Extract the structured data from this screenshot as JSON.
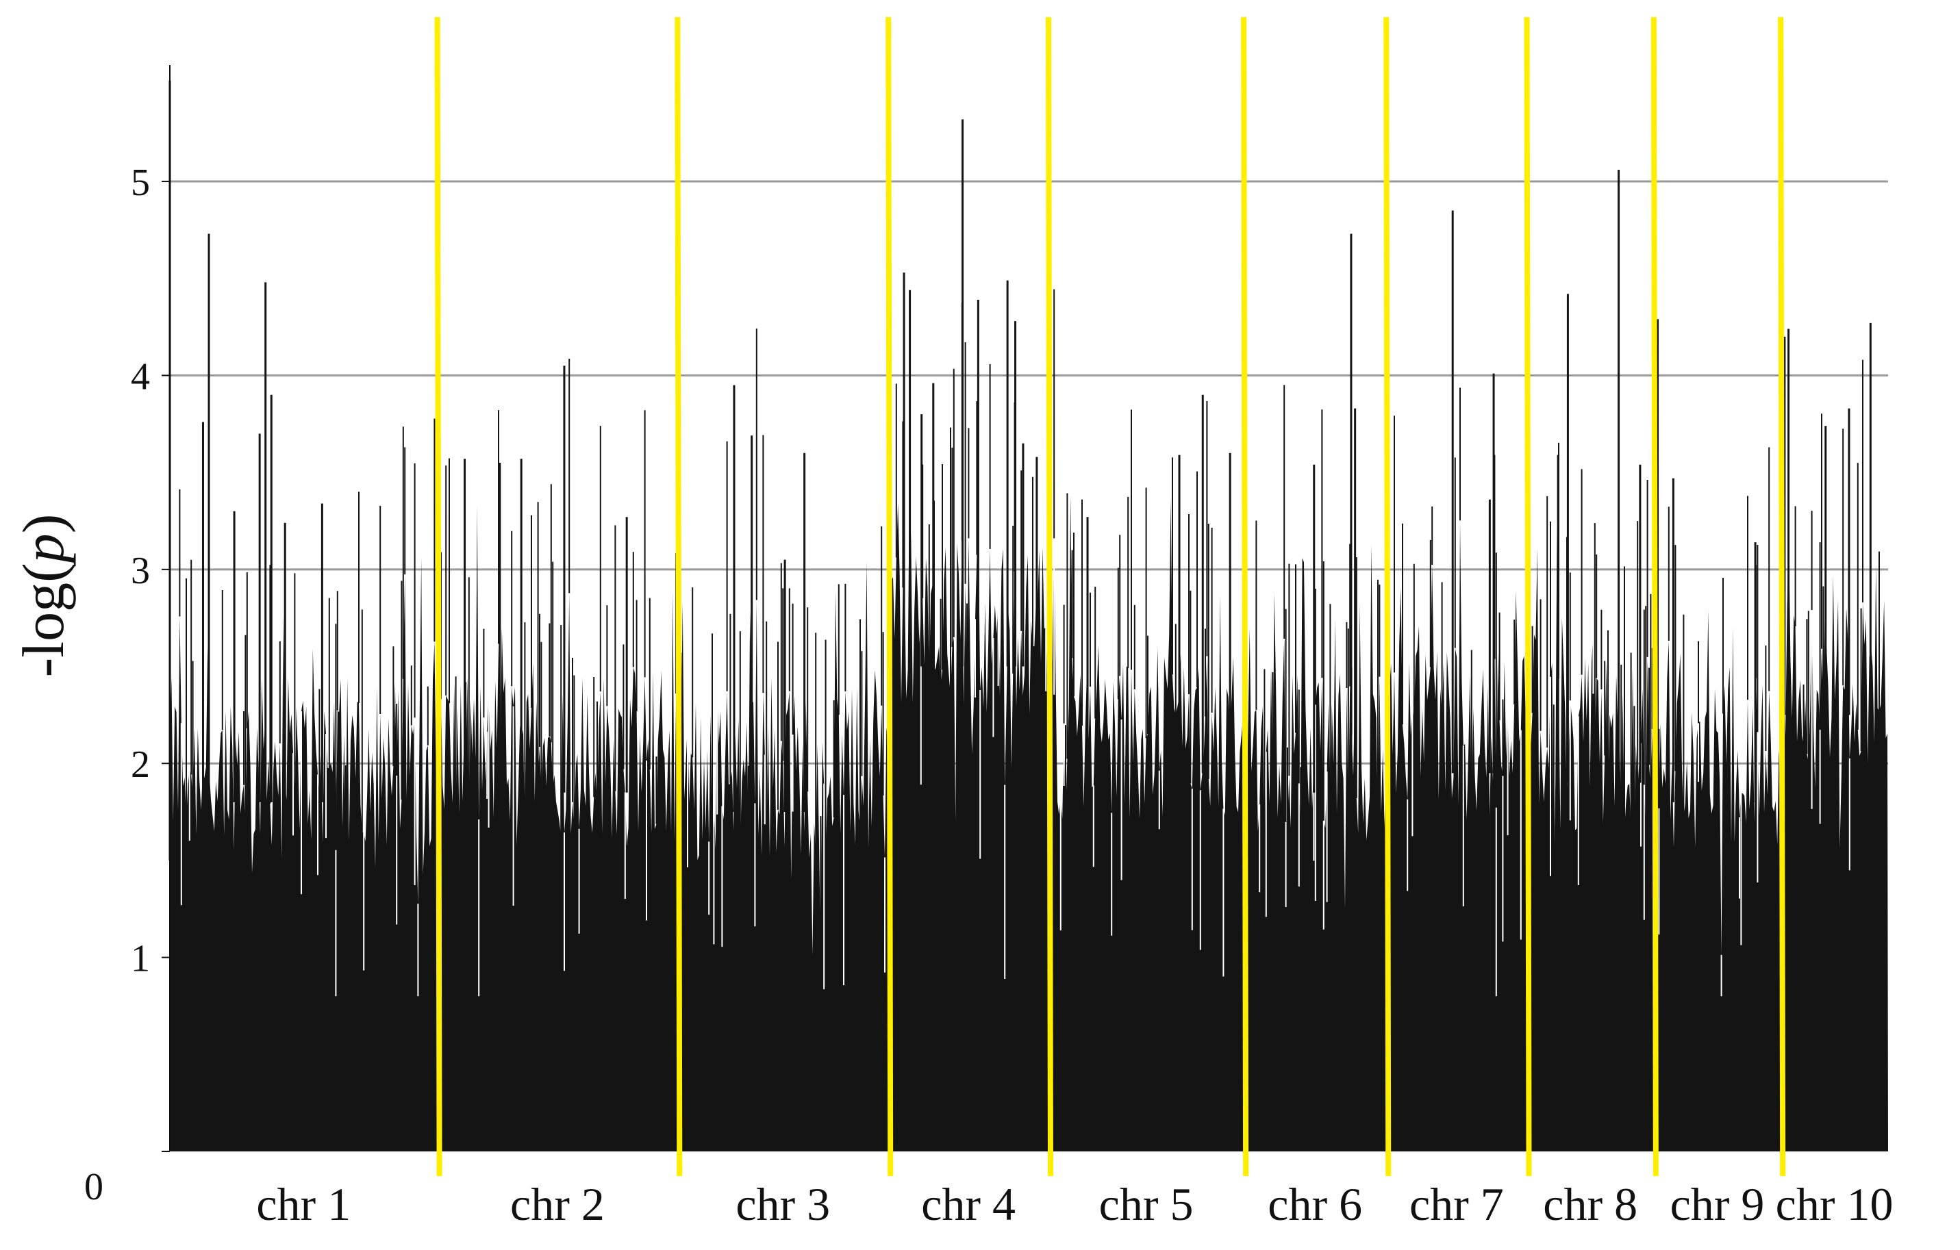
{
  "chart_data": {
    "type": "bar",
    "ylabel_prefix": "-log(",
    "ylabel_var": "p",
    "ylabel_suffix": ")",
    "xlabel": "",
    "ylim": [
      0,
      5.6
    ],
    "yticks": [
      0,
      1,
      2,
      3,
      4,
      5
    ],
    "gridlines_at": [
      2,
      3,
      4,
      5
    ],
    "grid": true,
    "bar_color": "#141414",
    "grid_color": "#9a9a9a",
    "boundary_color": "#ffee00",
    "chromosomes": [
      {
        "label": "chr 1",
        "start": 0,
        "end": 1370,
        "baseline": 2.0,
        "peaks": [
          [
            170,
            3.76
          ],
          [
            200,
            4.73
          ],
          [
            330,
            3.3
          ],
          [
            460,
            3.7
          ],
          [
            490,
            4.48
          ],
          [
            520,
            3.9
          ],
          [
            590,
            3.24
          ],
          [
            780,
            3.34
          ]
        ]
      },
      {
        "label": "chr 2",
        "start": 1370,
        "end": 2600,
        "baseline": 2.05,
        "peaks": [
          [
            1510,
            3.57
          ],
          [
            1690,
            3.55
          ],
          [
            1800,
            3.57
          ],
          [
            2020,
            4.05
          ],
          [
            2340,
            3.27
          ]
        ]
      },
      {
        "label": "chr 3",
        "start": 2600,
        "end": 3680,
        "baseline": 1.95,
        "peaks": [
          [
            2890,
            3.95
          ],
          [
            2980,
            3.69
          ],
          [
            3250,
            3.6
          ],
          [
            3150,
            3.05
          ]
        ]
      },
      {
        "label": "chr 4",
        "start": 3680,
        "end": 4500,
        "baseline": 2.7,
        "peaks": [
          [
            3760,
            4.53
          ],
          [
            3790,
            4.44
          ],
          [
            3850,
            3.8
          ],
          [
            3910,
            3.96
          ],
          [
            4060,
            5.32
          ],
          [
            4140,
            4.39
          ],
          [
            4290,
            4.49
          ],
          [
            4330,
            4.28
          ],
          [
            4370,
            3.65
          ],
          [
            4440,
            3.58
          ]
        ]
      },
      {
        "label": "chr 5",
        "start": 4500,
        "end": 5500,
        "baseline": 2.15,
        "peaks": [
          [
            4700,
            3.27
          ],
          [
            5170,
            3.59
          ],
          [
            5290,
            3.9
          ],
          [
            5430,
            3.6
          ]
        ]
      },
      {
        "label": "chr 6",
        "start": 5500,
        "end": 6230,
        "baseline": 2.05,
        "peaks": [
          [
            5860,
            3.54
          ],
          [
            6050,
            4.73
          ],
          [
            6070,
            3.83
          ]
        ]
      },
      {
        "label": "chr 7",
        "start": 6230,
        "end": 6950,
        "baseline": 2.15,
        "peaks": [
          [
            6570,
            4.85
          ],
          [
            6780,
            4.01
          ],
          [
            6760,
            3.36
          ]
        ]
      },
      {
        "label": "chr 8",
        "start": 6950,
        "end": 7600,
        "baseline": 2.1,
        "peaks": [
          [
            7110,
            3.59
          ],
          [
            7160,
            4.42
          ],
          [
            7420,
            5.06
          ],
          [
            7530,
            3.54
          ]
        ]
      },
      {
        "label": "chr 9",
        "start": 7600,
        "end": 8250,
        "baseline": 2.0,
        "peaks": [
          [
            7620,
            4.29
          ],
          [
            7700,
            3.47
          ],
          [
            8120,
            3.14
          ]
        ]
      },
      {
        "label": "chr 10",
        "start": 8250,
        "end": 8800,
        "baseline": 2.45,
        "peaks": [
          [
            8270,
            4.2
          ],
          [
            8290,
            4.24
          ],
          [
            8480,
            3.74
          ],
          [
            8600,
            3.83
          ],
          [
            8710,
            4.27
          ]
        ]
      }
    ]
  }
}
